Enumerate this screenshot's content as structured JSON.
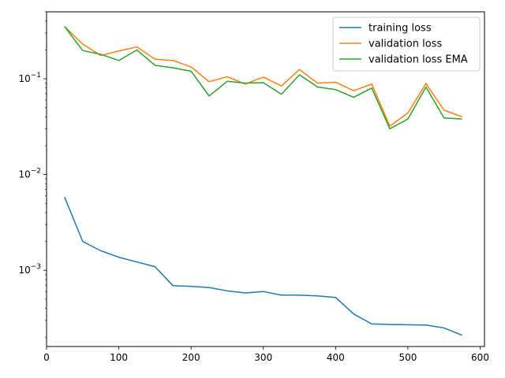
{
  "chart_data": {
    "type": "line",
    "title": "",
    "xlabel": "",
    "ylabel": "",
    "x": [
      25,
      50,
      75,
      100,
      125,
      150,
      175,
      200,
      225,
      250,
      275,
      300,
      325,
      350,
      375,
      400,
      425,
      450,
      475,
      500,
      525,
      550,
      575
    ],
    "xlim": [
      0,
      606
    ],
    "ylim": [
      0.00016,
      0.5
    ],
    "yscale": "log",
    "xticks": [
      0,
      100,
      200,
      300,
      400,
      500,
      600
    ],
    "yticks": [
      {
        "value": 0.001,
        "base": "10",
        "exp": "−3"
      },
      {
        "value": 0.01,
        "base": "10",
        "exp": "−2"
      },
      {
        "value": 0.1,
        "base": "10",
        "exp": "−1"
      }
    ],
    "grid": false,
    "legend_position": "top-right",
    "series": [
      {
        "name": "training loss",
        "color": "#1f77b4",
        "values": [
          0.0058,
          0.002,
          0.0016,
          0.00137,
          0.00122,
          0.00109,
          0.00069,
          0.00068,
          0.00066,
          0.00061,
          0.00058,
          0.0006,
          0.00055,
          0.00055,
          0.00054,
          0.00052,
          0.00035,
          0.000275,
          0.000272,
          0.00027,
          0.000268,
          0.00025,
          0.00021
        ]
      },
      {
        "name": "validation loss",
        "color": "#ff7f0e",
        "values": [
          0.35,
          0.23,
          0.175,
          0.195,
          0.215,
          0.16,
          0.155,
          0.133,
          0.093,
          0.105,
          0.088,
          0.104,
          0.084,
          0.125,
          0.09,
          0.092,
          0.075,
          0.088,
          0.032,
          0.044,
          0.089,
          0.047,
          0.04
        ]
      },
      {
        "name": "validation loss EMA",
        "color": "#2ca02c",
        "values": [
          0.35,
          0.197,
          0.18,
          0.155,
          0.2,
          0.138,
          0.13,
          0.12,
          0.066,
          0.094,
          0.09,
          0.091,
          0.069,
          0.11,
          0.082,
          0.077,
          0.064,
          0.08,
          0.03,
          0.038,
          0.082,
          0.039,
          0.038
        ]
      }
    ]
  }
}
